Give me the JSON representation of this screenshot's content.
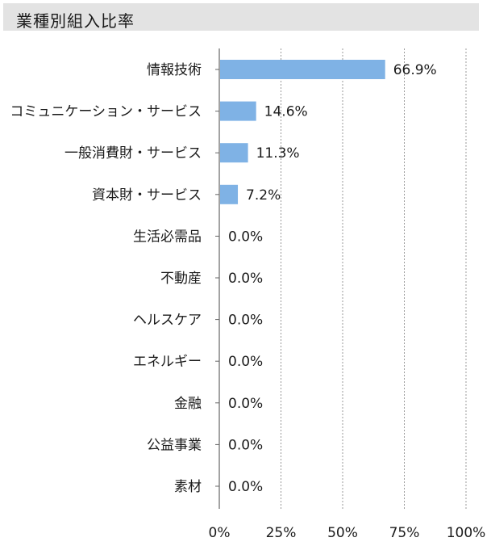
{
  "title": "業種別組入比率",
  "chart_data": {
    "type": "bar",
    "orientation": "horizontal",
    "categories": [
      "情報技術",
      "コミュニケーション・サービス",
      "一般消費財・サービス",
      "資本財・サービス",
      "生活必需品",
      "不動産",
      "ヘルスケア",
      "エネルギー",
      "金融",
      "公益事業",
      "素材"
    ],
    "values": [
      66.9,
      14.6,
      11.3,
      7.2,
      0.0,
      0.0,
      0.0,
      0.0,
      0.0,
      0.0,
      0.0
    ],
    "value_labels": [
      "66.9%",
      "14.6%",
      "11.3%",
      "7.2%",
      "0.0%",
      "0.0%",
      "0.0%",
      "0.0%",
      "0.0%",
      "0.0%",
      "0.0%"
    ],
    "xlim": [
      0,
      100
    ],
    "xticks": [
      0,
      25,
      50,
      75,
      100
    ],
    "xtick_labels": [
      "0%",
      "25%",
      "50%",
      "75%",
      "100%"
    ],
    "grid": true,
    "bar_color": "#7fb2e5",
    "grid_color": "#9a9a9a",
    "axis_color": "#666666"
  }
}
